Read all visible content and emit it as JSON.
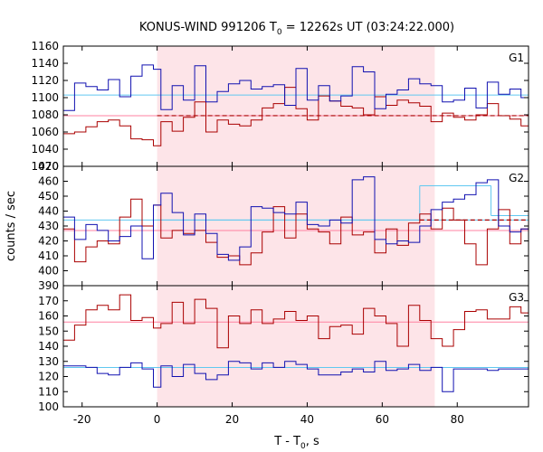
{
  "chart_data": {
    "type": "line",
    "title": "KONUS-WIND 991206 T",
    "title_subscript": "0",
    "title_rest": " = 12262s UT (03:24:22.000)",
    "xlabel": "T - T",
    "xlabel_subscript": "0",
    "xlabel_rest": ", s",
    "ylabel": "counts / sec",
    "xlim": [
      -25,
      99
    ],
    "xticks": [
      -20,
      0,
      20,
      40,
      60,
      80
    ],
    "shaded_interval": [
      0,
      74
    ],
    "colors": {
      "red_series": "#aa0000",
      "blue_series": "#1010b0",
      "red_background": "#ff80a0",
      "blue_background": "#60c8f0",
      "shade": "#fde4e8"
    },
    "panels": [
      {
        "label": "G1",
        "ylim": [
          1020,
          1160
        ],
        "yticks": [
          1020,
          1040,
          1060,
          1080,
          1100,
          1120,
          1140,
          1160
        ],
        "bg_red": 1079,
        "bg_blue": 1103,
        "red_dashed": {
          "x0": 0,
          "x1": 99,
          "y": 1079
        },
        "blue_fit": [],
        "red": {
          "x": [
            -25,
            -22,
            -19,
            -16,
            -13,
            -10,
            -7,
            -4,
            -1,
            1,
            4,
            7,
            10,
            13,
            16,
            19,
            22,
            25,
            28,
            31,
            34,
            37,
            40,
            43,
            46,
            49,
            52,
            55,
            58,
            61,
            64,
            67,
            70,
            73,
            76,
            79,
            82,
            85,
            88,
            91,
            94,
            97,
            99
          ],
          "y": [
            1058,
            1060,
            1066,
            1072,
            1074,
            1067,
            1052,
            1051,
            1044,
            1072,
            1061,
            1077,
            1095,
            1060,
            1074,
            1069,
            1067,
            1074,
            1088,
            1093,
            1112,
            1087,
            1074,
            1102,
            1096,
            1090,
            1088,
            1080,
            1101,
            1091,
            1097,
            1094,
            1090,
            1072,
            1082,
            1077,
            1074,
            1080,
            1093,
            1079,
            1075,
            1067,
            1078
          ]
        },
        "blue": {
          "x": [
            -25,
            -22,
            -19,
            -16,
            -13,
            -10,
            -7,
            -4,
            -1,
            1,
            4,
            7,
            10,
            13,
            16,
            19,
            22,
            25,
            28,
            31,
            34,
            37,
            40,
            43,
            46,
            49,
            52,
            55,
            58,
            61,
            64,
            67,
            70,
            73,
            76,
            79,
            82,
            85,
            88,
            91,
            94,
            97,
            99
          ],
          "y": [
            1085,
            1117,
            1113,
            1109,
            1121,
            1101,
            1125,
            1138,
            1133,
            1086,
            1114,
            1097,
            1137,
            1095,
            1107,
            1116,
            1120,
            1110,
            1113,
            1115,
            1091,
            1134,
            1097,
            1114,
            1096,
            1102,
            1136,
            1130,
            1087,
            1104,
            1109,
            1122,
            1116,
            1114,
            1095,
            1097,
            1111,
            1088,
            1118,
            1104,
            1110,
            1100,
            1110
          ]
        }
      },
      {
        "label": "G2",
        "ylim": [
          390,
          470
        ],
        "yticks": [
          390,
          400,
          410,
          420,
          430,
          440,
          450,
          460,
          470
        ],
        "bg_red": 427,
        "bg_blue": 434,
        "red_dashed": {
          "x0": 70,
          "x1": 99,
          "y": 434
        },
        "blue_fit": [
          {
            "x0": 0,
            "x1": 70,
            "y": 434
          },
          {
            "x0": 70,
            "x1": 89,
            "y": 457
          },
          {
            "x0": 89,
            "x1": 99,
            "y": 437
          }
        ],
        "red": {
          "x": [
            -25,
            -22,
            -19,
            -16,
            -13,
            -10,
            -7,
            -4,
            -1,
            1,
            4,
            7,
            10,
            13,
            16,
            19,
            22,
            25,
            28,
            31,
            34,
            37,
            40,
            43,
            46,
            49,
            52,
            55,
            58,
            61,
            64,
            67,
            70,
            73,
            76,
            79,
            82,
            85,
            88,
            91,
            94,
            97,
            99
          ],
          "y": [
            428,
            406,
            416,
            420,
            418,
            436,
            448,
            430,
            444,
            422,
            427,
            425,
            427,
            419,
            409,
            410,
            404,
            412,
            426,
            443,
            422,
            438,
            428,
            426,
            418,
            436,
            424,
            426,
            412,
            428,
            417,
            432,
            438,
            428,
            442,
            434,
            418,
            404,
            428,
            441,
            418,
            428,
            430
          ]
        },
        "blue": {
          "x": [
            -25,
            -22,
            -19,
            -16,
            -13,
            -10,
            -7,
            -4,
            -1,
            1,
            4,
            7,
            10,
            13,
            16,
            19,
            22,
            25,
            28,
            31,
            34,
            37,
            40,
            43,
            46,
            49,
            52,
            55,
            58,
            61,
            64,
            67,
            70,
            73,
            76,
            79,
            82,
            85,
            88,
            91,
            94,
            97,
            99
          ],
          "y": [
            436,
            421,
            431,
            427,
            420,
            423,
            430,
            408,
            444,
            452,
            439,
            424,
            438,
            425,
            411,
            407,
            416,
            443,
            442,
            439,
            438,
            446,
            431,
            430,
            434,
            432,
            461,
            463,
            421,
            418,
            420,
            419,
            430,
            441,
            446,
            448,
            451,
            459,
            461,
            430,
            426,
            428,
            422
          ]
        }
      },
      {
        "label": "G3",
        "ylim": [
          100,
          180
        ],
        "yticks": [
          100,
          110,
          120,
          130,
          140,
          150,
          160,
          170
        ],
        "bg_red": 156,
        "bg_blue": 126,
        "red_dashed": null,
        "blue_fit": [],
        "red": {
          "x": [
            -25,
            -22,
            -19,
            -16,
            -13,
            -10,
            -7,
            -4,
            -1,
            1,
            4,
            7,
            10,
            13,
            16,
            19,
            22,
            25,
            28,
            31,
            34,
            37,
            40,
            43,
            46,
            49,
            52,
            55,
            58,
            61,
            64,
            67,
            70,
            73,
            76,
            79,
            82,
            85,
            88,
            91,
            94,
            97,
            99
          ],
          "y": [
            144,
            154,
            164,
            167,
            164,
            174,
            157,
            159,
            152,
            155,
            169,
            155,
            171,
            165,
            139,
            160,
            155,
            164,
            155,
            158,
            163,
            157,
            160,
            145,
            153,
            154,
            148,
            165,
            160,
            155,
            140,
            167,
            157,
            145,
            140,
            151,
            163,
            164,
            158,
            158,
            166,
            162,
            165
          ]
        },
        "blue": {
          "x": [
            -25,
            -22,
            -19,
            -16,
            -13,
            -10,
            -7,
            -4,
            -1,
            1,
            4,
            7,
            10,
            13,
            16,
            19,
            22,
            25,
            28,
            31,
            34,
            37,
            40,
            43,
            46,
            49,
            52,
            55,
            58,
            61,
            64,
            67,
            70,
            73,
            76,
            79,
            82,
            85,
            88,
            91,
            94,
            97,
            99
          ],
          "y": [
            127,
            127,
            126,
            122,
            121,
            126,
            129,
            125,
            113,
            127,
            120,
            128,
            122,
            118,
            121,
            130,
            129,
            125,
            129,
            126,
            130,
            128,
            125,
            121,
            121,
            123,
            125,
            123,
            130,
            124,
            125,
            128,
            124,
            126,
            110,
            125,
            125,
            125,
            124,
            125,
            125,
            125,
            125
          ]
        }
      }
    ]
  }
}
